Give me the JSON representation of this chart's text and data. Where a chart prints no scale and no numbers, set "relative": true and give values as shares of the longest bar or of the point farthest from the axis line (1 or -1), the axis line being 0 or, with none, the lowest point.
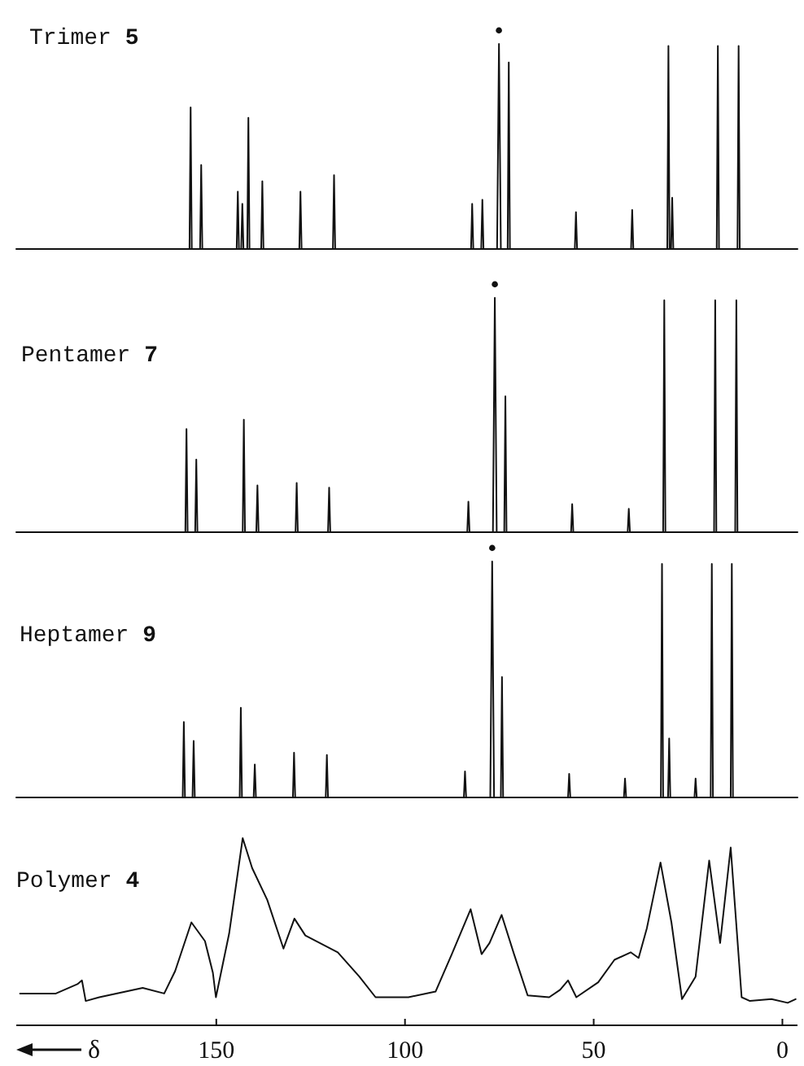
{
  "chart_data": [
    {
      "type": "line",
      "title": "Trimer 5",
      "relative": true,
      "xlim": [
        203,
        -4
      ],
      "tick_labels": false,
      "x": [
        203,
        157.1,
        156.8,
        156.5,
        154.3,
        154.0,
        153.7,
        144.6,
        144.3,
        144.0,
        143.4,
        143.1,
        142.8,
        141.8,
        141.5,
        141.2,
        138.1,
        137.8,
        137.5,
        128.0,
        127.7,
        127.4,
        119.1,
        118.8,
        118.5,
        82.5,
        82.2,
        81.9,
        79.8,
        79.5,
        79.2,
        75.6,
        75.1,
        74.6,
        72.8,
        72.5,
        72.2,
        55.0,
        54.7,
        54.4,
        40.1,
        39.8,
        39.5,
        30.5,
        30.2,
        29.9,
        29.5,
        29.2,
        28.9,
        17.4,
        17.1,
        16.8,
        11.9,
        11.6,
        11.3,
        -4
      ],
      "values": [
        0,
        0,
        0.69,
        0,
        0,
        0.41,
        0,
        0,
        0.28,
        0,
        0,
        0.22,
        0,
        0,
        0.64,
        0,
        0,
        0.33,
        0,
        0,
        0.28,
        0,
        0,
        0.36,
        0,
        0,
        0.22,
        0,
        0,
        0.24,
        0,
        0,
        1,
        0,
        0,
        0.91,
        0,
        0,
        0.18,
        0,
        0,
        0.19,
        0,
        0,
        0.99,
        0,
        0,
        0.25,
        0,
        0,
        0.99,
        0,
        0,
        0.99,
        0,
        0
      ],
      "annotations": [
        {
          "text": "•",
          "x": 75.1,
          "y": 1
        }
      ]
    },
    {
      "type": "line",
      "title": "Pentamer 7",
      "relative": true,
      "xlim": [
        203,
        -4
      ],
      "tick_labels": false,
      "x": [
        203,
        158.2,
        157.9,
        157.6,
        155.6,
        155.3,
        155.0,
        143.0,
        142.7,
        142.4,
        139.4,
        139.1,
        138.8,
        129.0,
        128.7,
        128.4,
        120.4,
        120.1,
        119.8,
        83.5,
        83.2,
        82.9,
        76.7,
        76.2,
        75.7,
        73.7,
        73.4,
        73.1,
        56.0,
        55.7,
        55.4,
        41.0,
        40.7,
        40.4,
        31.6,
        31.3,
        31.0,
        18.1,
        17.8,
        17.5,
        12.5,
        12.2,
        11.9,
        -4
      ],
      "values": [
        0,
        0,
        0.44,
        0,
        0,
        0.31,
        0,
        0,
        0.48,
        0,
        0,
        0.2,
        0,
        0,
        0.21,
        0,
        0,
        0.19,
        0,
        0,
        0.13,
        0,
        0,
        1,
        0,
        0,
        0.58,
        0,
        0,
        0.12,
        0,
        0,
        0.1,
        0,
        0,
        0.99,
        0,
        0,
        0.99,
        0,
        0,
        0.99,
        0,
        0
      ],
      "annotations": [
        {
          "text": "•",
          "x": 76.2,
          "y": 1
        }
      ]
    },
    {
      "type": "line",
      "title": "Heptamer 9",
      "relative": true,
      "xlim": [
        203,
        -4
      ],
      "tick_labels": false,
      "x": [
        203,
        158.9,
        158.6,
        158.3,
        156.3,
        156.0,
        155.7,
        143.8,
        143.5,
        143.2,
        140.1,
        139.8,
        139.5,
        129.7,
        129.4,
        129.1,
        121.0,
        120.7,
        120.4,
        84.4,
        84.1,
        83.8,
        77.4,
        76.9,
        76.4,
        74.6,
        74.3,
        74.0,
        56.8,
        56.5,
        56.2,
        42.0,
        41.7,
        41.4,
        32.2,
        31.9,
        31.6,
        30.3,
        30.0,
        29.7,
        23.3,
        23.0,
        22.7,
        19.0,
        18.7,
        18.4,
        13.7,
        13.4,
        13.1,
        -4
      ],
      "values": [
        0,
        0,
        0.32,
        0,
        0,
        0.24,
        0,
        0,
        0.38,
        0,
        0,
        0.14,
        0,
        0,
        0.19,
        0,
        0,
        0.18,
        0,
        0,
        0.11,
        0,
        0,
        1,
        0,
        0,
        0.51,
        0,
        0,
        0.1,
        0,
        0,
        0.08,
        0,
        0,
        0.99,
        0,
        0,
        0.25,
        0,
        0,
        0.08,
        0,
        0,
        0.99,
        0,
        0,
        0.99,
        0,
        0
      ],
      "annotations": [
        {
          "text": "•",
          "x": 76.9,
          "y": 1
        }
      ]
    },
    {
      "type": "line",
      "title": "Polymer 4",
      "relative": true,
      "xlim": [
        203,
        -4
      ],
      "xlabel": "δ",
      "xticks": [
        150,
        100,
        50,
        0
      ],
      "x": [
        202,
        192.5,
        186.8,
        185.6,
        184.6,
        181,
        169.5,
        163.8,
        160.9,
        156.6,
        153,
        150.9,
        150.1,
        146.6,
        143,
        140.5,
        136.5,
        132.2,
        129.3,
        126.4,
        117.8,
        112.1,
        107.8,
        99.1,
        91.9,
        87.6,
        82.6,
        79.7,
        77.6,
        74.4,
        71.1,
        67.5,
        61.8,
        58.9,
        56.8,
        54.6,
        48.8,
        44.5,
        40.2,
        38.1,
        35.9,
        32.3,
        29.4,
        26.6,
        23,
        19.4,
        16.5,
        13.7,
        10.8,
        8.6,
        2.9,
        -1.4,
        -3.5
      ],
      "values": [
        0.17,
        0.17,
        0.22,
        0.24,
        0.13,
        0.15,
        0.2,
        0.17,
        0.29,
        0.55,
        0.45,
        0.28,
        0.15,
        0.49,
        1,
        0.84,
        0.67,
        0.41,
        0.57,
        0.48,
        0.39,
        0.26,
        0.15,
        0.15,
        0.18,
        0.38,
        0.62,
        0.38,
        0.44,
        0.59,
        0.38,
        0.16,
        0.15,
        0.19,
        0.24,
        0.15,
        0.23,
        0.35,
        0.39,
        0.36,
        0.52,
        0.87,
        0.55,
        0.14,
        0.26,
        0.88,
        0.44,
        0.95,
        0.15,
        0.13,
        0.14,
        0.12,
        0.14
      ]
    }
  ]
}
